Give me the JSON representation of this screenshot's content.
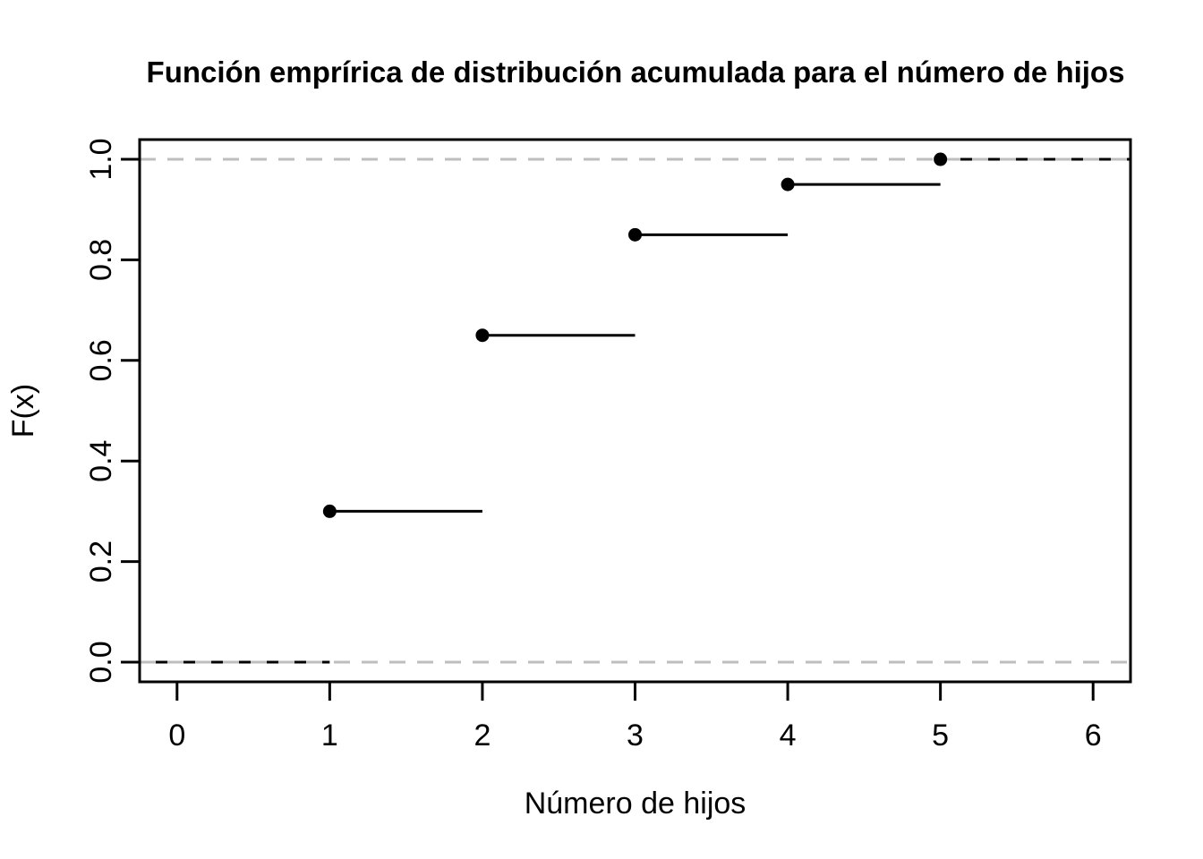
{
  "page": {
    "background": "#ffffff"
  },
  "chart_data": {
    "type": "step",
    "title": "Función emprírica de distribución acumulada para el número de hijos",
    "xlabel": "Número de hijos",
    "ylabel": "F(x)",
    "xlim": [
      -0.245,
      6.245
    ],
    "ylim": [
      -0.0392,
      1.0392
    ],
    "x_ticks": [
      0,
      1,
      2,
      3,
      4,
      5,
      6
    ],
    "x_tick_labels": [
      "0",
      "1",
      "2",
      "3",
      "4",
      "5",
      "6"
    ],
    "y_ticks": [
      0.0,
      0.2,
      0.4,
      0.6,
      0.8,
      1.0
    ],
    "y_tick_labels": [
      "0.0",
      "0.2",
      "0.4",
      "0.6",
      "0.8",
      "1.0"
    ],
    "grid": false,
    "legend": null,
    "points": [
      {
        "x": 1,
        "y": 0.3
      },
      {
        "x": 2,
        "y": 0.65
      },
      {
        "x": 3,
        "y": 0.85
      },
      {
        "x": 4,
        "y": 0.95
      },
      {
        "x": 5,
        "y": 1.0
      }
    ],
    "segments": [
      {
        "x1": "xmin",
        "y1": 0,
        "x2": 1,
        "y2": 0
      },
      {
        "x1": 1,
        "y1": 0.3,
        "x2": 2,
        "y2": 0.3
      },
      {
        "x1": 2,
        "y1": 0.65,
        "x2": 3,
        "y2": 0.65
      },
      {
        "x1": 3,
        "y1": 0.85,
        "x2": 4,
        "y2": 0.85
      },
      {
        "x1": 4,
        "y1": 0.95,
        "x2": 5,
        "y2": 0.95
      },
      {
        "x1": 5,
        "y1": 1.0,
        "x2": "xmax",
        "y2": 1.0
      }
    ],
    "reference_lines": [
      {
        "y": 0,
        "style": "dashed",
        "color": "#BEBEBE"
      },
      {
        "y": 1,
        "style": "dashed",
        "color": "#BEBEBE"
      }
    ],
    "colors": {
      "line": "#000000",
      "point": "#000000",
      "axis": "#000000",
      "text": "#000000",
      "reference": "#BEBEBE"
    }
  }
}
